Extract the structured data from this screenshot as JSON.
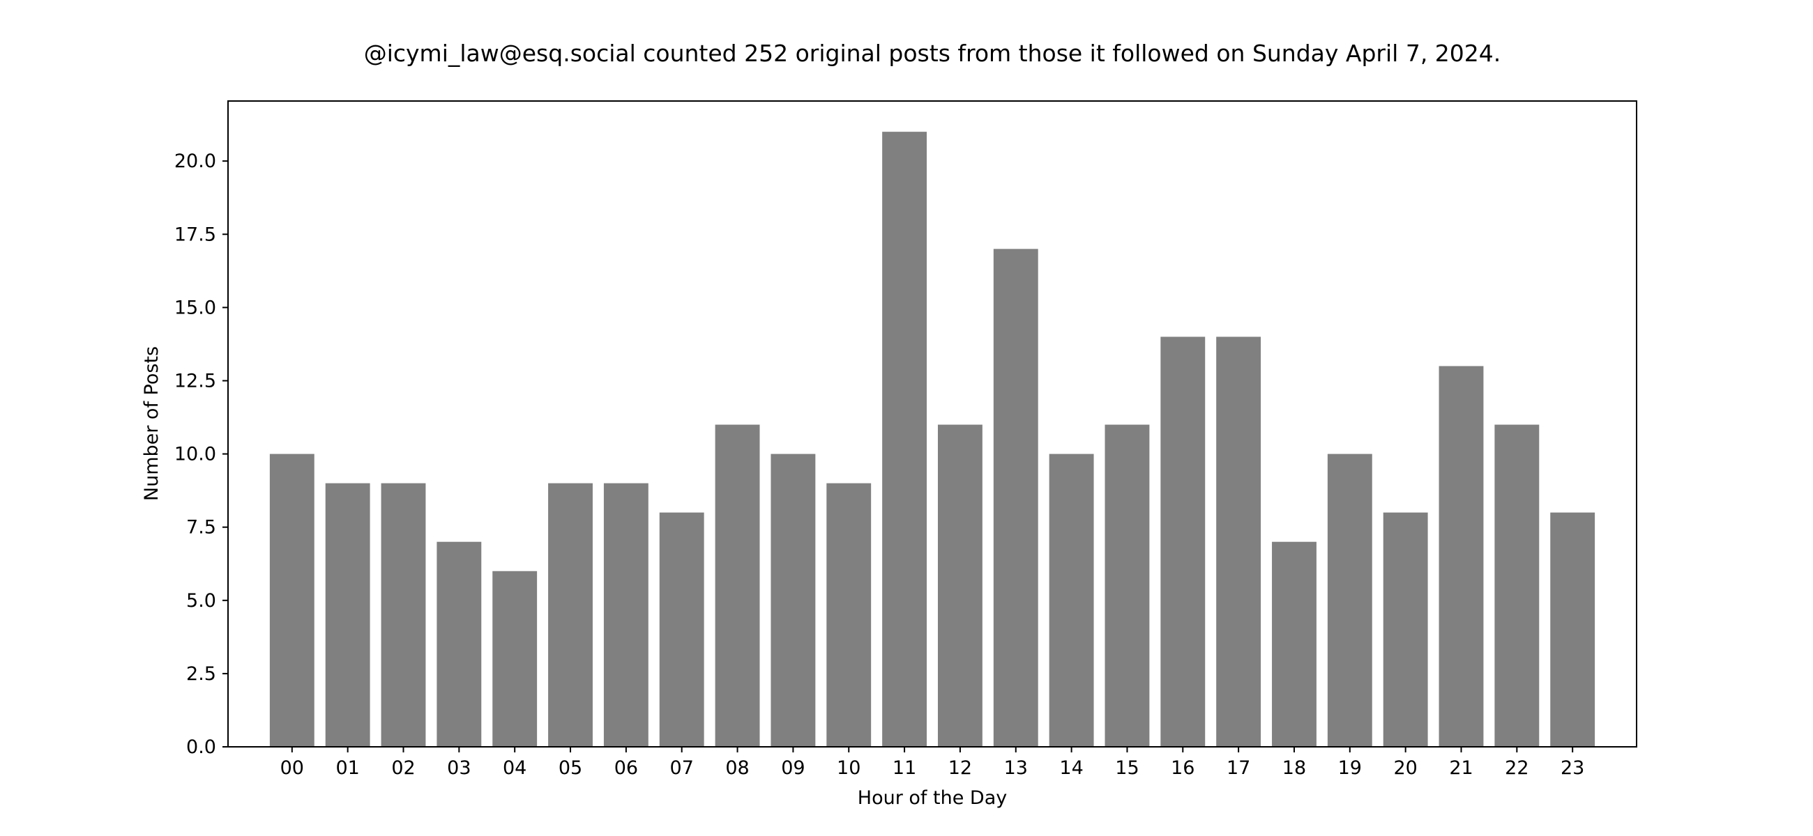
{
  "chart_data": {
    "type": "bar",
    "title": "@icymi_law@esq.social counted 252 original posts from those it followed on Sunday April 7, 2024.",
    "xlabel": "Hour of the Day",
    "ylabel": "Number of Posts",
    "categories": [
      "00",
      "01",
      "02",
      "03",
      "04",
      "05",
      "06",
      "07",
      "08",
      "09",
      "10",
      "11",
      "12",
      "13",
      "14",
      "15",
      "16",
      "17",
      "18",
      "19",
      "20",
      "21",
      "22",
      "23"
    ],
    "values": [
      10,
      9,
      9,
      7,
      6,
      9,
      9,
      8,
      11,
      10,
      9,
      21,
      11,
      17,
      10,
      11,
      14,
      14,
      7,
      10,
      8,
      13,
      11,
      8
    ],
    "ylim": [
      0,
      22.05
    ],
    "yticks": [
      "0.0",
      "2.5",
      "5.0",
      "7.5",
      "10.0",
      "12.5",
      "15.0",
      "17.5",
      "20.0"
    ],
    "bar_color": "#808080",
    "grid": false,
    "legend": "none"
  }
}
